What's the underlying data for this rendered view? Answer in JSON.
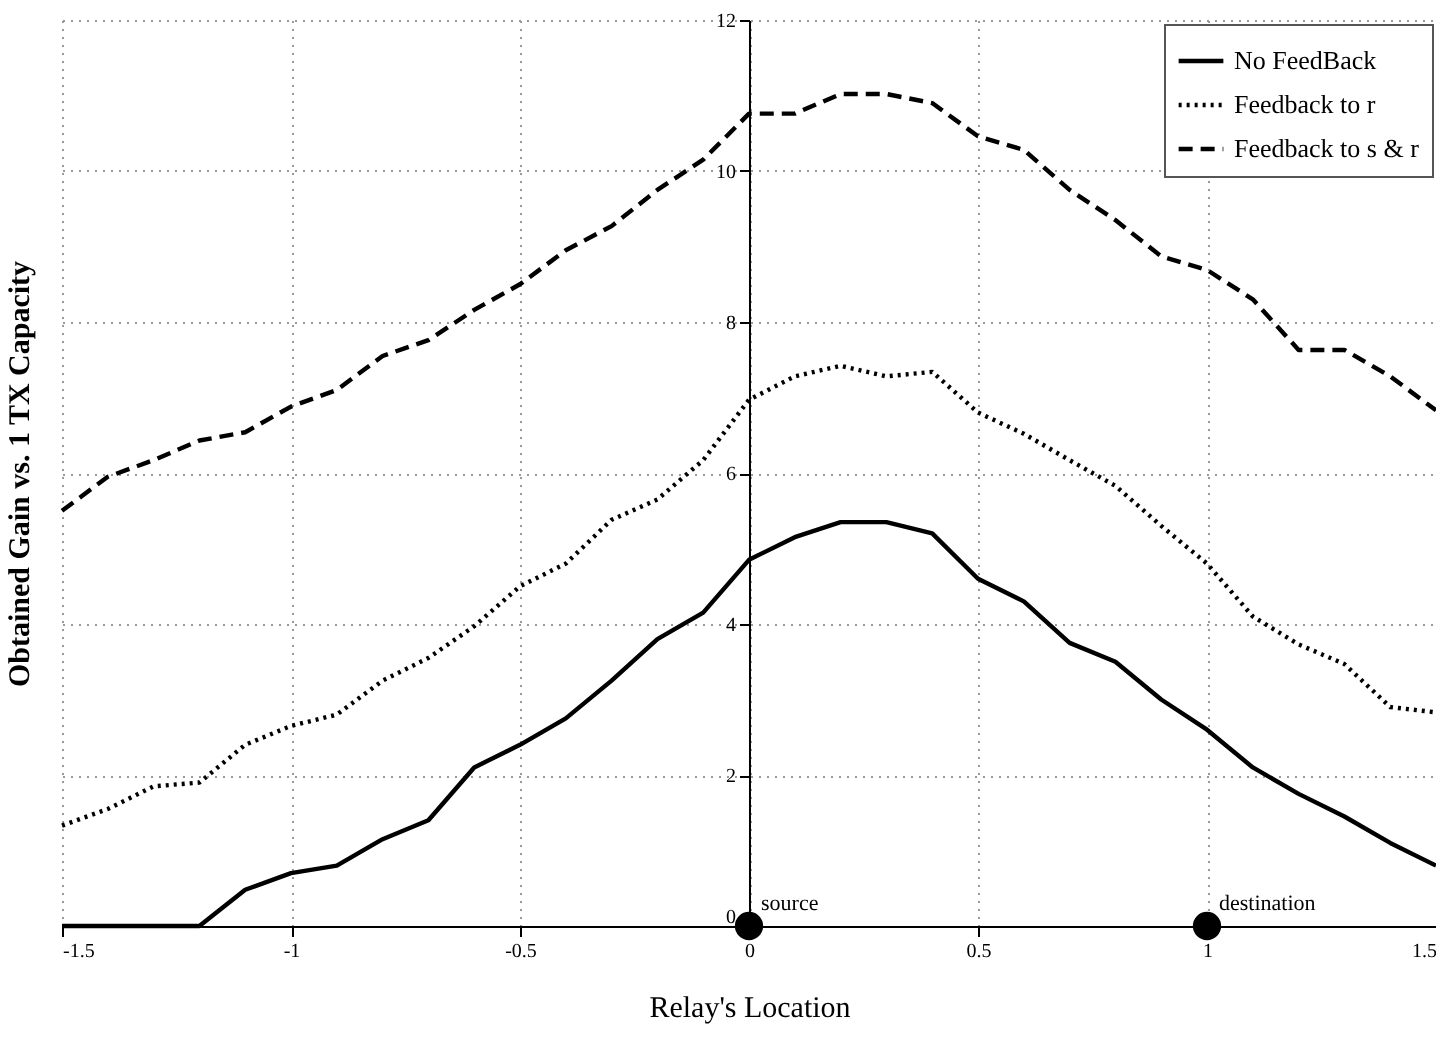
{
  "chart_data": {
    "type": "line",
    "xlabel": "Relay's Location",
    "ylabel": "Obtained Gain vs. 1 TX Capacity",
    "x": [
      -1.5,
      -1.4,
      -1.3,
      -1.2,
      -1.1,
      -1.0,
      -0.9,
      -0.8,
      -0.7,
      -0.6,
      -0.5,
      -0.4,
      -0.3,
      -0.2,
      -0.1,
      0,
      0.1,
      0.2,
      0.3,
      0.4,
      0.5,
      0.6,
      0.7,
      0.8,
      0.9,
      1.0,
      1.1,
      1.2,
      1.3,
      1.4,
      1.5
    ],
    "series": [
      {
        "name": "No FeedBack",
        "color": "#000000",
        "line_style": "solid",
        "values": [
          0,
          0,
          0,
          0,
          0.48,
          0.7,
          0.8,
          1.15,
          1.4,
          2.1,
          2.4,
          2.75,
          3.25,
          3.8,
          4.15,
          4.85,
          5.15,
          5.35,
          5.35,
          5.2,
          4.6,
          4.3,
          3.75,
          3.5,
          3.0,
          2.6,
          2.1,
          1.75,
          1.45,
          1.1,
          0.8
        ]
      },
      {
        "name": "Feedback to r",
        "color": "#000000",
        "line_style": "dotted",
        "values": [
          1.33,
          1.55,
          1.85,
          1.9,
          2.4,
          2.65,
          2.8,
          3.25,
          3.55,
          3.97,
          4.5,
          4.8,
          5.38,
          5.65,
          6.17,
          6.97,
          7.28,
          7.42,
          7.28,
          7.34,
          6.8,
          6.52,
          6.17,
          5.83,
          5.3,
          4.8,
          4.1,
          3.73,
          3.47,
          2.9,
          2.83
        ]
      },
      {
        "name": "Feedback to s & r",
        "color": "#000000",
        "line_style": "dashed",
        "values": [
          5.5,
          5.95,
          6.17,
          6.43,
          6.54,
          6.88,
          7.1,
          7.55,
          7.76,
          8.16,
          8.5,
          8.95,
          9.27,
          9.75,
          10.15,
          10.76,
          10.76,
          11.02,
          11.02,
          10.9,
          10.46,
          10.28,
          9.75,
          9.35,
          8.87,
          8.69,
          8.3,
          7.63,
          7.63,
          7.28,
          6.83
        ]
      },
      {
        "type": "scatter",
        "marker": "circle",
        "color": "#000000",
        "x": [
          0,
          1
        ],
        "values": [
          0,
          0
        ]
      }
    ],
    "annotations": [
      {
        "text": "source",
        "x": 0,
        "y": 0
      },
      {
        "text": "destination",
        "x": 1,
        "y": 0
      }
    ],
    "xlim": [
      -1.5,
      1.5
    ],
    "xticks": [
      -1.5,
      -1,
      -0.5,
      0,
      0.5,
      1,
      1.5
    ],
    "ylim": [
      0,
      12
    ],
    "yticks": [
      0,
      2,
      4,
      6,
      8,
      10,
      12
    ],
    "grid": true,
    "legend": "top right"
  }
}
